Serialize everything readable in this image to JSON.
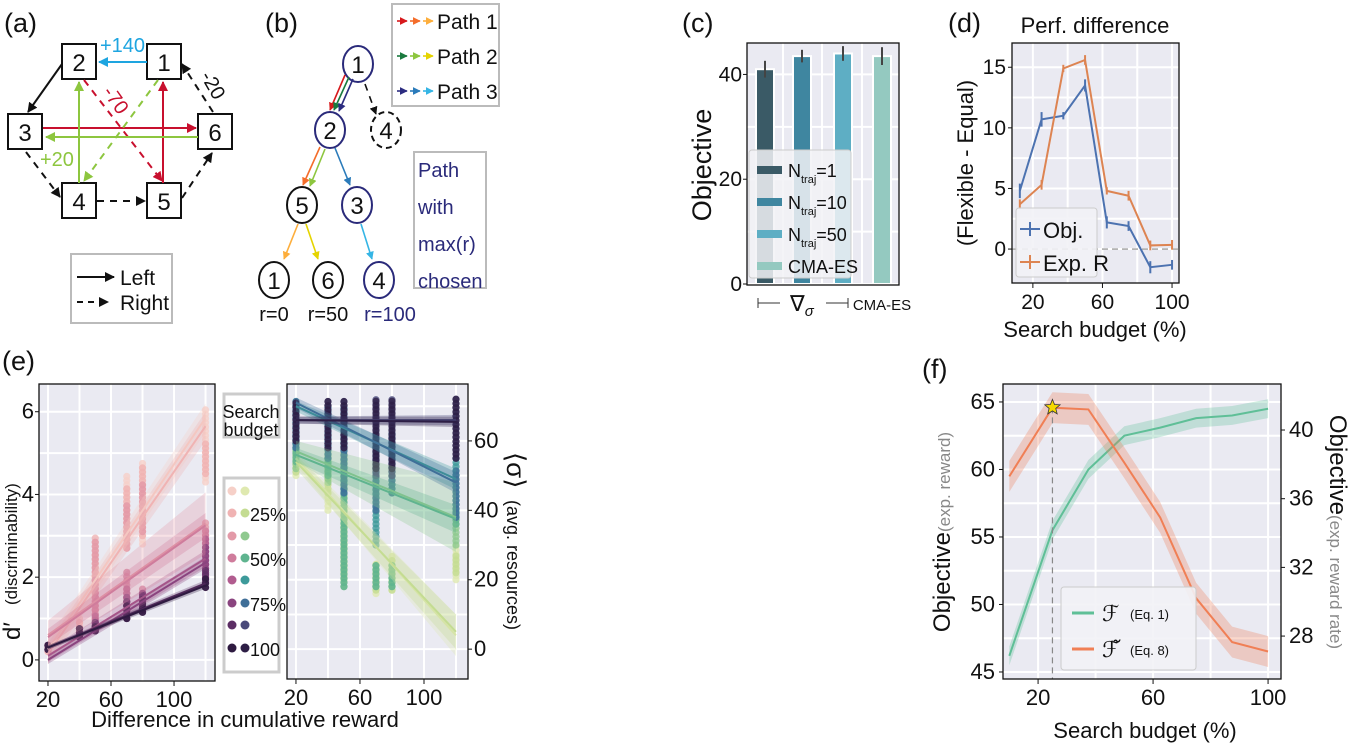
{
  "panel_labels": {
    "a": "(a)",
    "b": "(b)",
    "c": "(c)",
    "d": "(d)",
    "e": "(e)",
    "f": "(f)"
  },
  "diagram_a": {
    "nodes": [
      "1",
      "2",
      "3",
      "4",
      "5",
      "6"
    ],
    "edge_labels": {
      "blue": "+140",
      "red": "-70",
      "black": "-20",
      "green": "+20"
    },
    "legend": {
      "left": "Left",
      "right": "Right"
    },
    "colors": {
      "blue": "#1ea5e0",
      "red": "#c8102e",
      "green": "#8dc63f",
      "black": "#111111"
    }
  },
  "diagram_b": {
    "nodes": {
      "root": "1",
      "l1a": "2",
      "l1b": "4",
      "l2a": "5",
      "l2b": "3",
      "l3a": "1",
      "l3b": "6",
      "l3c": "4"
    },
    "rewards": [
      "r=0",
      "r=50",
      "r=100"
    ],
    "legend": [
      "Path 1",
      "Path 2",
      "Path 3"
    ],
    "note": [
      "Path",
      "with",
      "max(r)",
      "chosen"
    ],
    "path_colors": [
      [
        "#d7191c",
        "#f46d2a",
        "#fdae3c"
      ],
      [
        "#1a7a3e",
        "#8dc63f",
        "#e5d400"
      ],
      [
        "#2c2c80",
        "#2b7bba",
        "#35b5e5"
      ]
    ],
    "highlight_color": "#2a2a7a"
  },
  "chart_data": [
    {
      "panel": "c",
      "type": "bar",
      "categories": [
        "N_traj=1",
        "N_traj=10",
        "N_traj=50",
        "CMA-ES"
      ],
      "values": [
        41,
        43.5,
        44,
        43.5
      ],
      "errors": [
        1.6,
        1.2,
        1.4,
        1.7
      ],
      "colors": [
        "#3a5a66",
        "#3f86a0",
        "#5eaec4",
        "#94c9c0"
      ],
      "ylabel": "Objective",
      "ylim": [
        0,
        46
      ],
      "yticks": [
        0,
        20,
        40
      ],
      "xtick_labels": {
        "grad": {
          "symbol": "∇",
          "sub": "σ"
        },
        "cma": "CMA-ES"
      },
      "legend": [
        {
          "main": "N",
          "sub": "traj",
          "suffix": "=1"
        },
        {
          "main": "N",
          "sub": "traj",
          "suffix": "=10"
        },
        {
          "main": "N",
          "sub": "traj",
          "suffix": "=50"
        },
        {
          "main": "CMA-ES",
          "sub": "",
          "suffix": ""
        }
      ],
      "legend_position": "lower-left",
      "grid": true
    },
    {
      "panel": "d",
      "type": "line",
      "title": "Perf. difference",
      "xlabel": "Search budget (%)",
      "ylabel": "(Flexible - Equal)",
      "x": [
        12.5,
        25,
        37.5,
        50,
        62.5,
        75,
        87.5,
        100
      ],
      "series": [
        {
          "name": "Obj.",
          "color": "#4c72b0",
          "values": [
            4.8,
            10.7,
            11.0,
            13.5,
            2.2,
            1.9,
            -1.5,
            -1.3
          ],
          "errors": [
            0.6,
            0.6,
            0.3,
            0.5,
            0.5,
            0.4,
            0.5,
            0.4
          ]
        },
        {
          "name": "Exp. R",
          "color": "#dd8452",
          "values": [
            3.7,
            5.3,
            14.9,
            15.6,
            4.8,
            4.4,
            0.3,
            0.35
          ],
          "errors": [
            0.4,
            0.4,
            0.3,
            0.4,
            0.3,
            0.4,
            0.4,
            0.4
          ]
        }
      ],
      "xlim": [
        8,
        104
      ],
      "ylim": [
        -2.8,
        17.0
      ],
      "xticks": [
        20,
        60,
        100
      ],
      "yticks": [
        0,
        5,
        10,
        15
      ],
      "reference_line": 0,
      "legend_position": "lower-left",
      "grid": true
    },
    {
      "panel": "e-left",
      "type": "scatter",
      "xlabel": "Difference in cumulative reward",
      "ylabel": {
        "symbol": "d′",
        "text": "(discriminability)"
      },
      "x": [
        20,
        40,
        50,
        70,
        80,
        120
      ],
      "xlim": [
        14.3,
        126
      ],
      "ylim": [
        -0.51,
        6.67
      ],
      "xticks": [
        20,
        60,
        100
      ],
      "yticks": [
        0,
        2,
        4,
        6
      ],
      "series": [
        {
          "budget": 12.5,
          "color": "#f6d0c8",
          "fit": [
            0.25,
            5.85
          ],
          "ci": [
            0.25,
            0.35
          ],
          "point_ranges": [
            [
              0.2,
              0.4
            ],
            [
              0.9,
              1.1
            ],
            [
              1.8,
              2.6
            ],
            [
              3.0,
              4.5
            ],
            [
              2.8,
              4.8
            ],
            [
              4.3,
              6.1
            ]
          ]
        },
        {
          "budget": 25,
          "color": "#f0b3b3",
          "fit": [
            0.15,
            5.65
          ],
          "ci": [
            0.25,
            0.35
          ],
          "point_ranges": [
            [
              0.2,
              0.4
            ],
            [
              0.8,
              1.0
            ],
            [
              1.2,
              3.0
            ],
            [
              2.7,
              4.2
            ],
            [
              3.0,
              4.7
            ],
            [
              4.5,
              5.3
            ]
          ]
        },
        {
          "budget": 37.5,
          "color": "#e39aa8",
          "fit": [
            0.6,
            3.3
          ],
          "ci": [
            0.35,
            0.75
          ],
          "point_ranges": [
            [
              0.25,
              0.4
            ],
            [
              0.6,
              0.8
            ],
            [
              1.0,
              2.9
            ],
            [
              2.7,
              3.8
            ],
            [
              3.1,
              4.3
            ],
            [
              2.9,
              3.4
            ]
          ]
        },
        {
          "budget": 50,
          "color": "#cf7c9c",
          "fit": [
            0.55,
            3.25
          ],
          "ci": [
            0.2,
            0.3
          ],
          "point_ranges": [
            [
              0.25,
              0.4
            ],
            [
              0.6,
              0.8
            ],
            [
              0.8,
              2.0
            ],
            [
              1.5,
              2.2
            ],
            [
              1.3,
              1.8
            ],
            [
              2.3,
              3.2
            ]
          ]
        },
        {
          "budget": 62.5,
          "color": "#b15c8f",
          "fit": [
            0.1,
            2.45
          ],
          "ci": [
            0.15,
            0.2
          ],
          "point_ranges": [
            [
              0.25,
              0.4
            ],
            [
              0.55,
              0.8
            ],
            [
              0.75,
              1.1
            ],
            [
              1.1,
              1.8
            ],
            [
              1.2,
              1.7
            ],
            [
              2.0,
              3.0
            ]
          ]
        },
        {
          "budget": 75,
          "color": "#8a447f",
          "fit": [
            0.0,
            2.35
          ],
          "ci": [
            0.1,
            0.15
          ],
          "point_ranges": [
            [
              0.25,
              0.4
            ],
            [
              0.55,
              0.8
            ],
            [
              0.7,
              1.0
            ],
            [
              1.0,
              1.6
            ],
            [
              1.2,
              1.7
            ],
            [
              1.9,
              2.8
            ]
          ]
        },
        {
          "budget": 87.5,
          "color": "#5c2e64",
          "fit": [
            0.3,
            1.85
          ],
          "ci": [
            0.05,
            0.08
          ],
          "point_ranges": [
            [
              0.25,
              0.4
            ],
            [
              0.55,
              0.8
            ],
            [
              0.7,
              0.95
            ],
            [
              1.0,
              1.5
            ],
            [
              1.15,
              1.6
            ],
            [
              1.75,
              2.2
            ]
          ]
        },
        {
          "budget": 100,
          "color": "#2e1a40",
          "fit": [
            0.3,
            1.8
          ],
          "ci": [
            0.05,
            0.08
          ],
          "point_ranges": [
            [
              0.25,
              0.4
            ],
            [
              0.55,
              0.8
            ],
            [
              0.7,
              0.9
            ],
            [
              1.0,
              1.4
            ],
            [
              1.15,
              1.5
            ],
            [
              1.75,
              2.0
            ]
          ]
        }
      ],
      "grid": true
    },
    {
      "panel": "e-right",
      "type": "scatter",
      "ylabel": {
        "symbol": "⟨σ⟩",
        "text": "(avg. resources)"
      },
      "x": [
        20,
        40,
        50,
        70,
        80,
        120
      ],
      "xlim": [
        14.4,
        127.5
      ],
      "ylim": [
        -8.6,
        76.4
      ],
      "xticks": [
        20,
        60,
        100
      ],
      "yticks": [
        0,
        20,
        40,
        60
      ],
      "series": [
        {
          "budget": 12.5,
          "color": "#dfe9b0",
          "fit": [
            55,
            4
          ],
          "ci": [
            2,
            6
          ],
          "point_ranges": [
            [
              50,
              58
            ],
            [
              40,
              58
            ],
            [
              22,
              60
            ],
            [
              16,
              25
            ],
            [
              17,
              27
            ],
            [
              20,
              30
            ]
          ]
        },
        {
          "budget": 25,
          "color": "#c4dc92",
          "fit": [
            54,
            5
          ],
          "ci": [
            2,
            5
          ],
          "point_ranges": [
            [
              51,
              58
            ],
            [
              45,
              57
            ],
            [
              20,
              58
            ],
            [
              17,
              25
            ],
            [
              17,
              26
            ],
            [
              22,
              28
            ]
          ]
        },
        {
          "budget": 37.5,
          "color": "#8fc98f",
          "fit": [
            57,
            38
          ],
          "ci": [
            3,
            10
          ],
          "point_ranges": [
            [
              52,
              60
            ],
            [
              48,
              56
            ],
            [
              18,
              56
            ],
            [
              18,
              25
            ],
            [
              18,
              25
            ],
            [
              30,
              38
            ]
          ]
        },
        {
          "budget": 50,
          "color": "#5fb48f",
          "fit": [
            56,
            37.5
          ],
          "ci": [
            2,
            4
          ],
          "point_ranges": [
            [
              54,
              62
            ],
            [
              50,
              57
            ],
            [
              18,
              55
            ],
            [
              18,
              25
            ],
            [
              18,
              25
            ],
            [
              36,
              40
            ]
          ]
        },
        {
          "budget": 62.5,
          "color": "#3d9a9a",
          "fit": [
            70,
            49
          ],
          "ci": [
            1.5,
            3
          ],
          "point_ranges": [
            [
              58,
              72
            ],
            [
              55,
              70
            ],
            [
              45,
              70
            ],
            [
              30,
              60
            ],
            [
              45,
              62
            ],
            [
              38,
              55
            ]
          ]
        },
        {
          "budget": 75,
          "color": "#3f6f98",
          "fit": [
            71,
            48
          ],
          "ci": [
            1.5,
            3
          ],
          "point_ranges": [
            [
              58,
              72
            ],
            [
              55,
              70
            ],
            [
              45,
              70
            ],
            [
              40,
              58
            ],
            [
              45,
              62
            ],
            [
              38,
              52
            ]
          ]
        },
        {
          "budget": 87.5,
          "color": "#4a4a7a",
          "fit": [
            66,
            66
          ],
          "ci": [
            1,
            1.5
          ],
          "point_ranges": [
            [
              60,
              72
            ],
            [
              58,
              72
            ],
            [
              58,
              72
            ],
            [
              50,
              72
            ],
            [
              50,
              72
            ],
            [
              55,
              72
            ]
          ]
        },
        {
          "budget": 100,
          "color": "#2d1e45",
          "fit": [
            66,
            65.5
          ],
          "ci": [
            1,
            1.5
          ],
          "point_ranges": [
            [
              60,
              72
            ],
            [
              58,
              72
            ],
            [
              58,
              72
            ],
            [
              52,
              72
            ],
            [
              52,
              72
            ],
            [
              55,
              72
            ]
          ]
        }
      ],
      "grid": true
    },
    {
      "panel": "f",
      "type": "line",
      "xlabel": "Search budget (%)",
      "ylabel_left": {
        "main": "Objective",
        "sub": "(exp. reward)"
      },
      "ylabel_right": {
        "main": "Objective",
        "sub": "(exp. reward rate)"
      },
      "x": [
        10,
        25,
        37.5,
        50,
        62.5,
        75,
        87.5,
        100
      ],
      "series": [
        {
          "name": "ℱ",
          "note": "(Eq. 1)",
          "axis": "left",
          "color": "#5fbf97",
          "values": [
            46.2,
            55.5,
            60.0,
            62.5,
            63.1,
            63.8,
            64.0,
            64.5
          ],
          "ci": 0.7
        },
        {
          "name": "ℱ̃",
          "note": "(Eq. 8)",
          "axis": "right",
          "color": "#f07f55",
          "values": [
            37.3,
            41.3,
            41.2,
            38.1,
            34.9,
            30.2,
            27.65,
            27.1
          ],
          "ci": 0.9
        }
      ],
      "xlim": [
        7.8,
        104.5
      ],
      "ylim_left": [
        44.48,
        66.33
      ],
      "ylim_right": [
        25.5,
        42.68
      ],
      "xticks": [
        20,
        60,
        100
      ],
      "yticks_left": [
        45,
        50,
        55,
        60,
        65
      ],
      "yticks_right": [
        28,
        32,
        36,
        40
      ],
      "marker": {
        "type": "star",
        "x": 25,
        "y": 64.6,
        "color": "#f5d800"
      },
      "vline_x": 25,
      "legend_position": "lower-center",
      "grid": true
    }
  ],
  "e_legend": {
    "title": [
      "Search",
      "budget"
    ],
    "labels": [
      "",
      "25%",
      "",
      "50%",
      "",
      "75%",
      "",
      "100"
    ]
  },
  "style": {
    "plot_bg": "#eaeaf2",
    "grid": "#ffffff",
    "axis_label_gray": "#888888"
  }
}
